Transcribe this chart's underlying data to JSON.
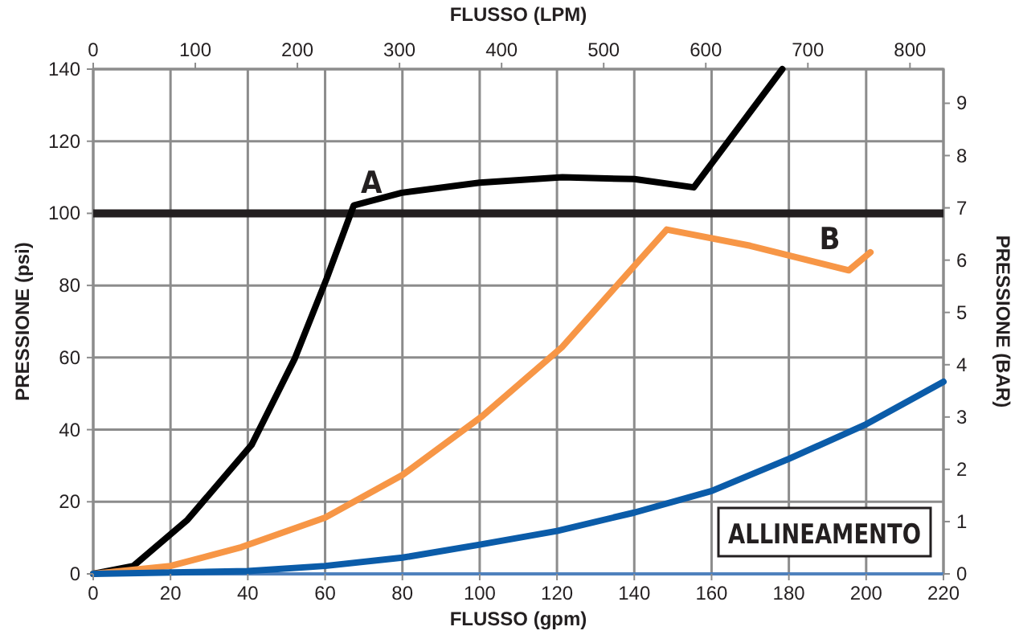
{
  "chart_data": {
    "type": "line",
    "xlabel": "FLUSSO (gpm)",
    "ylabel": "PRESSIONE (psi)",
    "x2label": "FLUSSO (LPM)",
    "y2label": "PRESSIONE (BAR)",
    "xlim": [
      0,
      220
    ],
    "xticks": [
      0,
      20,
      40,
      60,
      80,
      100,
      120,
      140,
      160,
      180,
      200,
      220
    ],
    "ylim": [
      0,
      140
    ],
    "yticks": [
      0,
      20,
      40,
      60,
      80,
      100,
      120,
      140
    ],
    "x2lim": [
      0,
      832.8
    ],
    "x2ticks": [
      0,
      100,
      200,
      300,
      400,
      500,
      600,
      700,
      800
    ],
    "y2lim": [
      0,
      9.653
    ],
    "y2ticks": [
      0,
      1,
      2,
      3,
      4,
      5,
      6,
      7,
      8,
      9
    ],
    "grid": true,
    "marker": "none",
    "line_style": "solid",
    "series": [
      {
        "color": "#000000",
        "x": [
          0,
          10.4,
          24.4,
          41,
          52.1,
          60.4,
          67.4,
          79.8,
          100,
          121.4,
          140,
          155.4,
          178.3
        ],
        "values": [
          0,
          2.2,
          15,
          35.8,
          59.6,
          81.9,
          102.2,
          105.7,
          108.5,
          110,
          109.5,
          107.2,
          140
        ]
      },
      {
        "color": "#f79646",
        "x": [
          0,
          20,
          38.3,
          60,
          80,
          100.6,
          121.4,
          140,
          148.4,
          170,
          195.5,
          201.1
        ],
        "values": [
          0,
          2.2,
          7.4,
          15.6,
          27.4,
          43.7,
          63,
          85.4,
          95.5,
          91,
          84.2,
          89.2
        ]
      },
      {
        "color": "#0b5ca9",
        "x": [
          0,
          40,
          60,
          80,
          100,
          120,
          140,
          160,
          180,
          200,
          220
        ],
        "values": [
          0,
          0.8,
          2.2,
          4.5,
          8.1,
          11.9,
          17,
          23,
          31.9,
          41.5,
          53.3
        ]
      }
    ],
    "ref_lines": [
      {
        "axis": "y",
        "value": 100,
        "color": "#231f20"
      }
    ],
    "annotations": [
      {
        "text": "A",
        "x": 67.4,
        "y": 102.2
      },
      {
        "text": "B",
        "x": 186,
        "y": 86.5
      },
      "ALLINEAMENTO"
    ]
  }
}
